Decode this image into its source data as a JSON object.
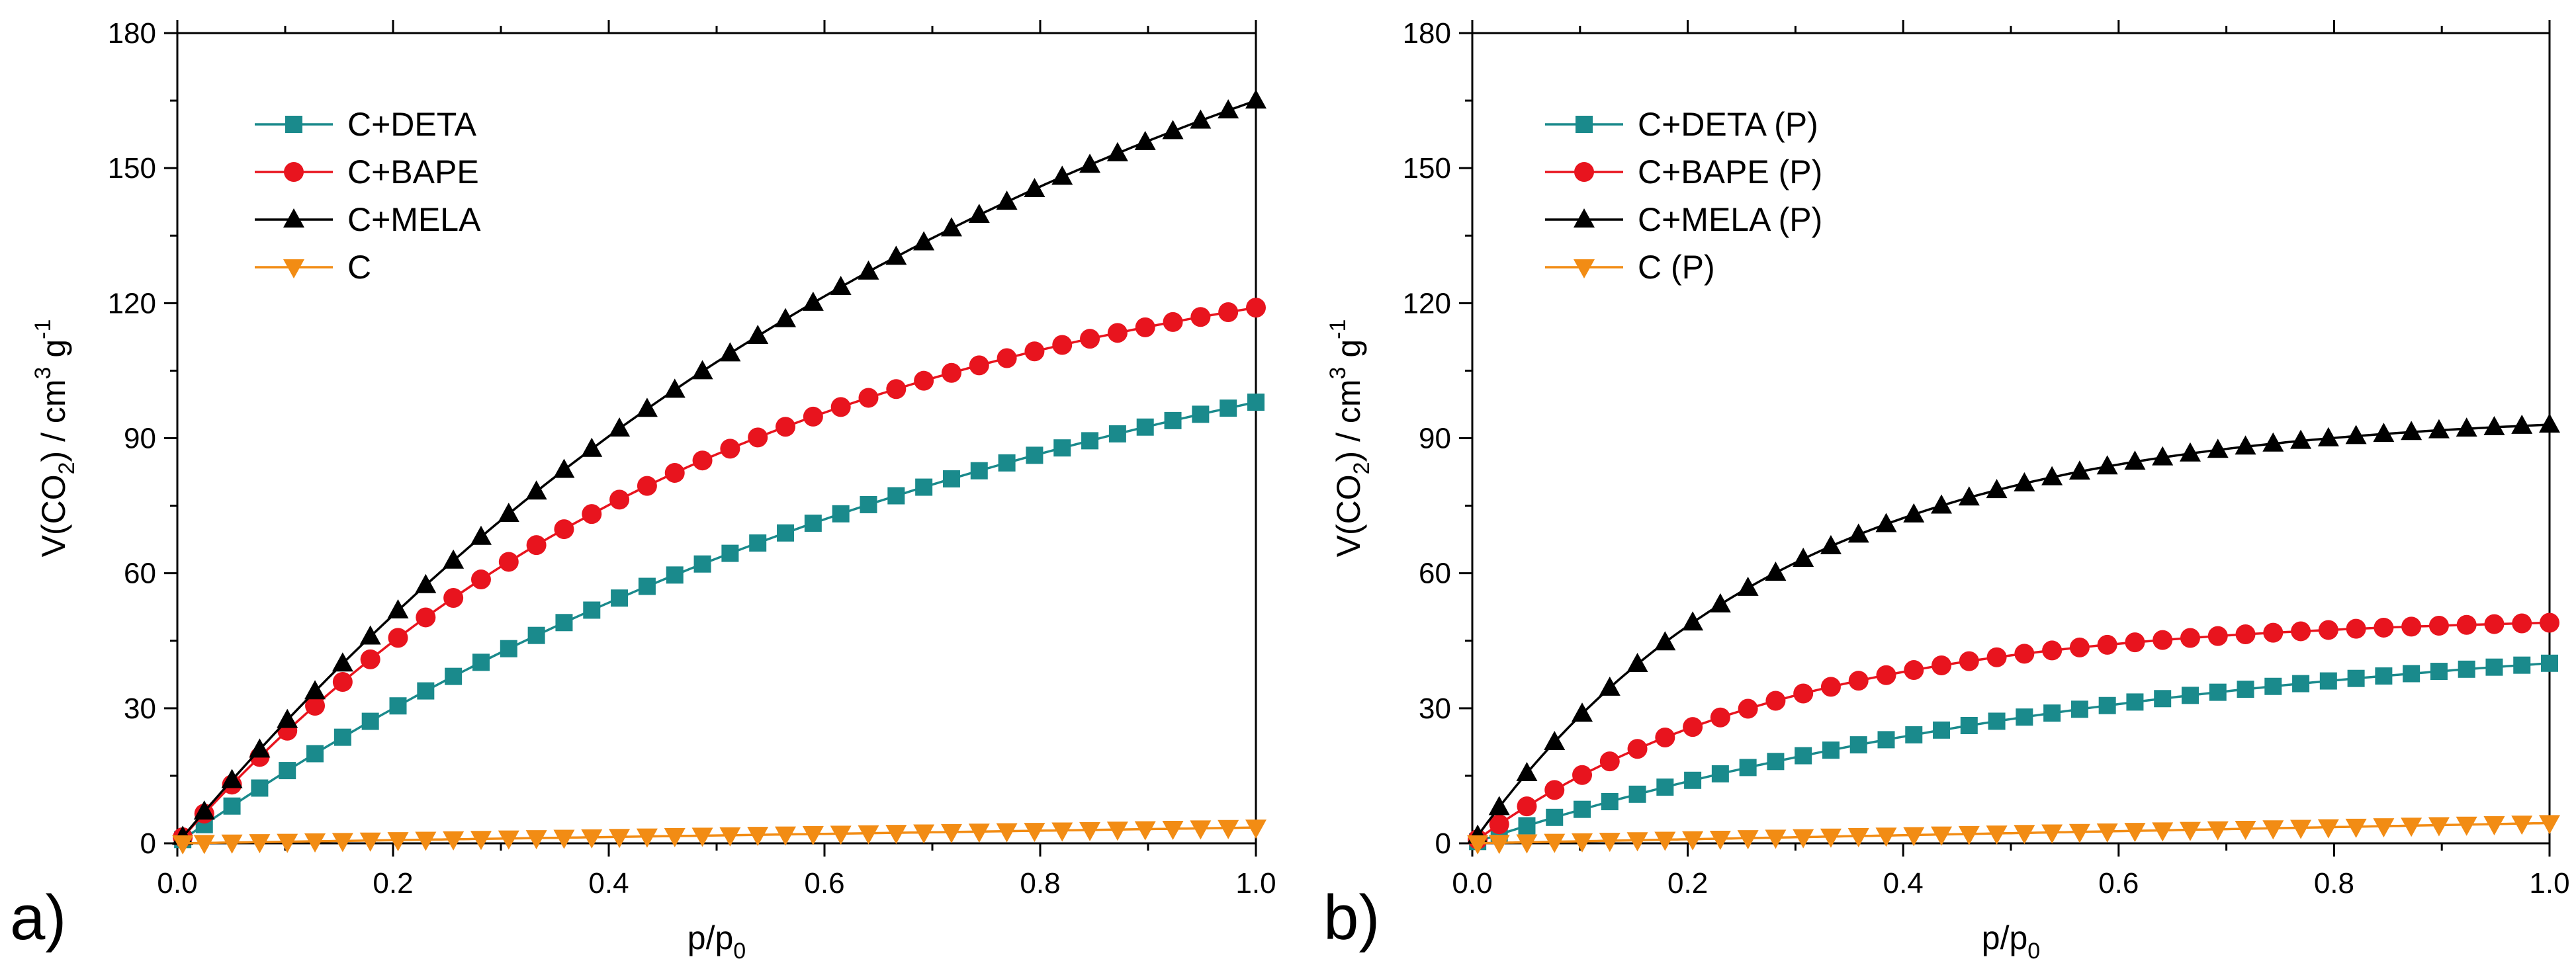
{
  "colors": {
    "deta": "#1a8a8c",
    "bape": "#e8141e",
    "mela": "#000000",
    "c": "#f28c14",
    "axis": "#000000",
    "background": "#ffffff"
  },
  "chart_data": [
    {
      "type": "line",
      "panel_label": "a)",
      "xlabel": "p/p0",
      "ylabel": "V(CO2) / cm3 g-1",
      "xlim": [
        0.0,
        1.0
      ],
      "ylim": [
        0,
        180
      ],
      "xticks": [
        0.0,
        0.2,
        0.4,
        0.6,
        0.8,
        1.0
      ],
      "xtick_labels": [
        "0.0",
        "0.2",
        "0.4",
        "0.6",
        "0.8",
        "1.0"
      ],
      "yticks": [
        0,
        30,
        60,
        90,
        120,
        150,
        180
      ],
      "ytick_labels": [
        "0",
        "30",
        "60",
        "90",
        "120",
        "150",
        "180"
      ],
      "legend_position": "top-left",
      "series": [
        {
          "name": "C+DETA",
          "key": "deta",
          "marker": "square",
          "a": 98,
          "b": 1.2
        },
        {
          "name": "C+BAPE",
          "key": "bape",
          "marker": "circle",
          "a": 119,
          "b": 1.95
        },
        {
          "name": "C+MELA",
          "key": "mela",
          "marker": "triangle-up",
          "a": 165,
          "b": 1.22
        },
        {
          "name": "C",
          "key": "c",
          "marker": "triangle-down",
          "a": 3.5,
          "b": 0
        }
      ]
    },
    {
      "type": "line",
      "panel_label": "b)",
      "xlabel": "p/p0",
      "ylabel": "V(CO2) / cm3 g-1",
      "xlim": [
        0.0,
        1.0
      ],
      "ylim": [
        0,
        180
      ],
      "xticks": [
        0.0,
        0.2,
        0.4,
        0.6,
        0.8,
        1.0
      ],
      "xtick_labels": [
        "0.0",
        "0.2",
        "0.4",
        "0.6",
        "0.8",
        "1.0"
      ],
      "yticks": [
        0,
        30,
        60,
        90,
        120,
        150,
        180
      ],
      "ytick_labels": [
        "0",
        "30",
        "60",
        "90",
        "120",
        "150",
        "180"
      ],
      "legend_position": "top-left",
      "series": [
        {
          "name": "C+DETA (P)",
          "key": "deta",
          "marker": "square",
          "a": 40,
          "b": 1.6
        },
        {
          "name": "C+BAPE (P)",
          "key": "bape",
          "marker": "circle",
          "a": 49,
          "b": 3.5
        },
        {
          "name": "C+MELA (P)",
          "key": "mela",
          "marker": "triangle-up",
          "a": 93,
          "b": 3.5
        },
        {
          "name": "C (P)",
          "key": "c",
          "marker": "triangle-down",
          "a": 4.5,
          "b": 0
        }
      ]
    }
  ]
}
